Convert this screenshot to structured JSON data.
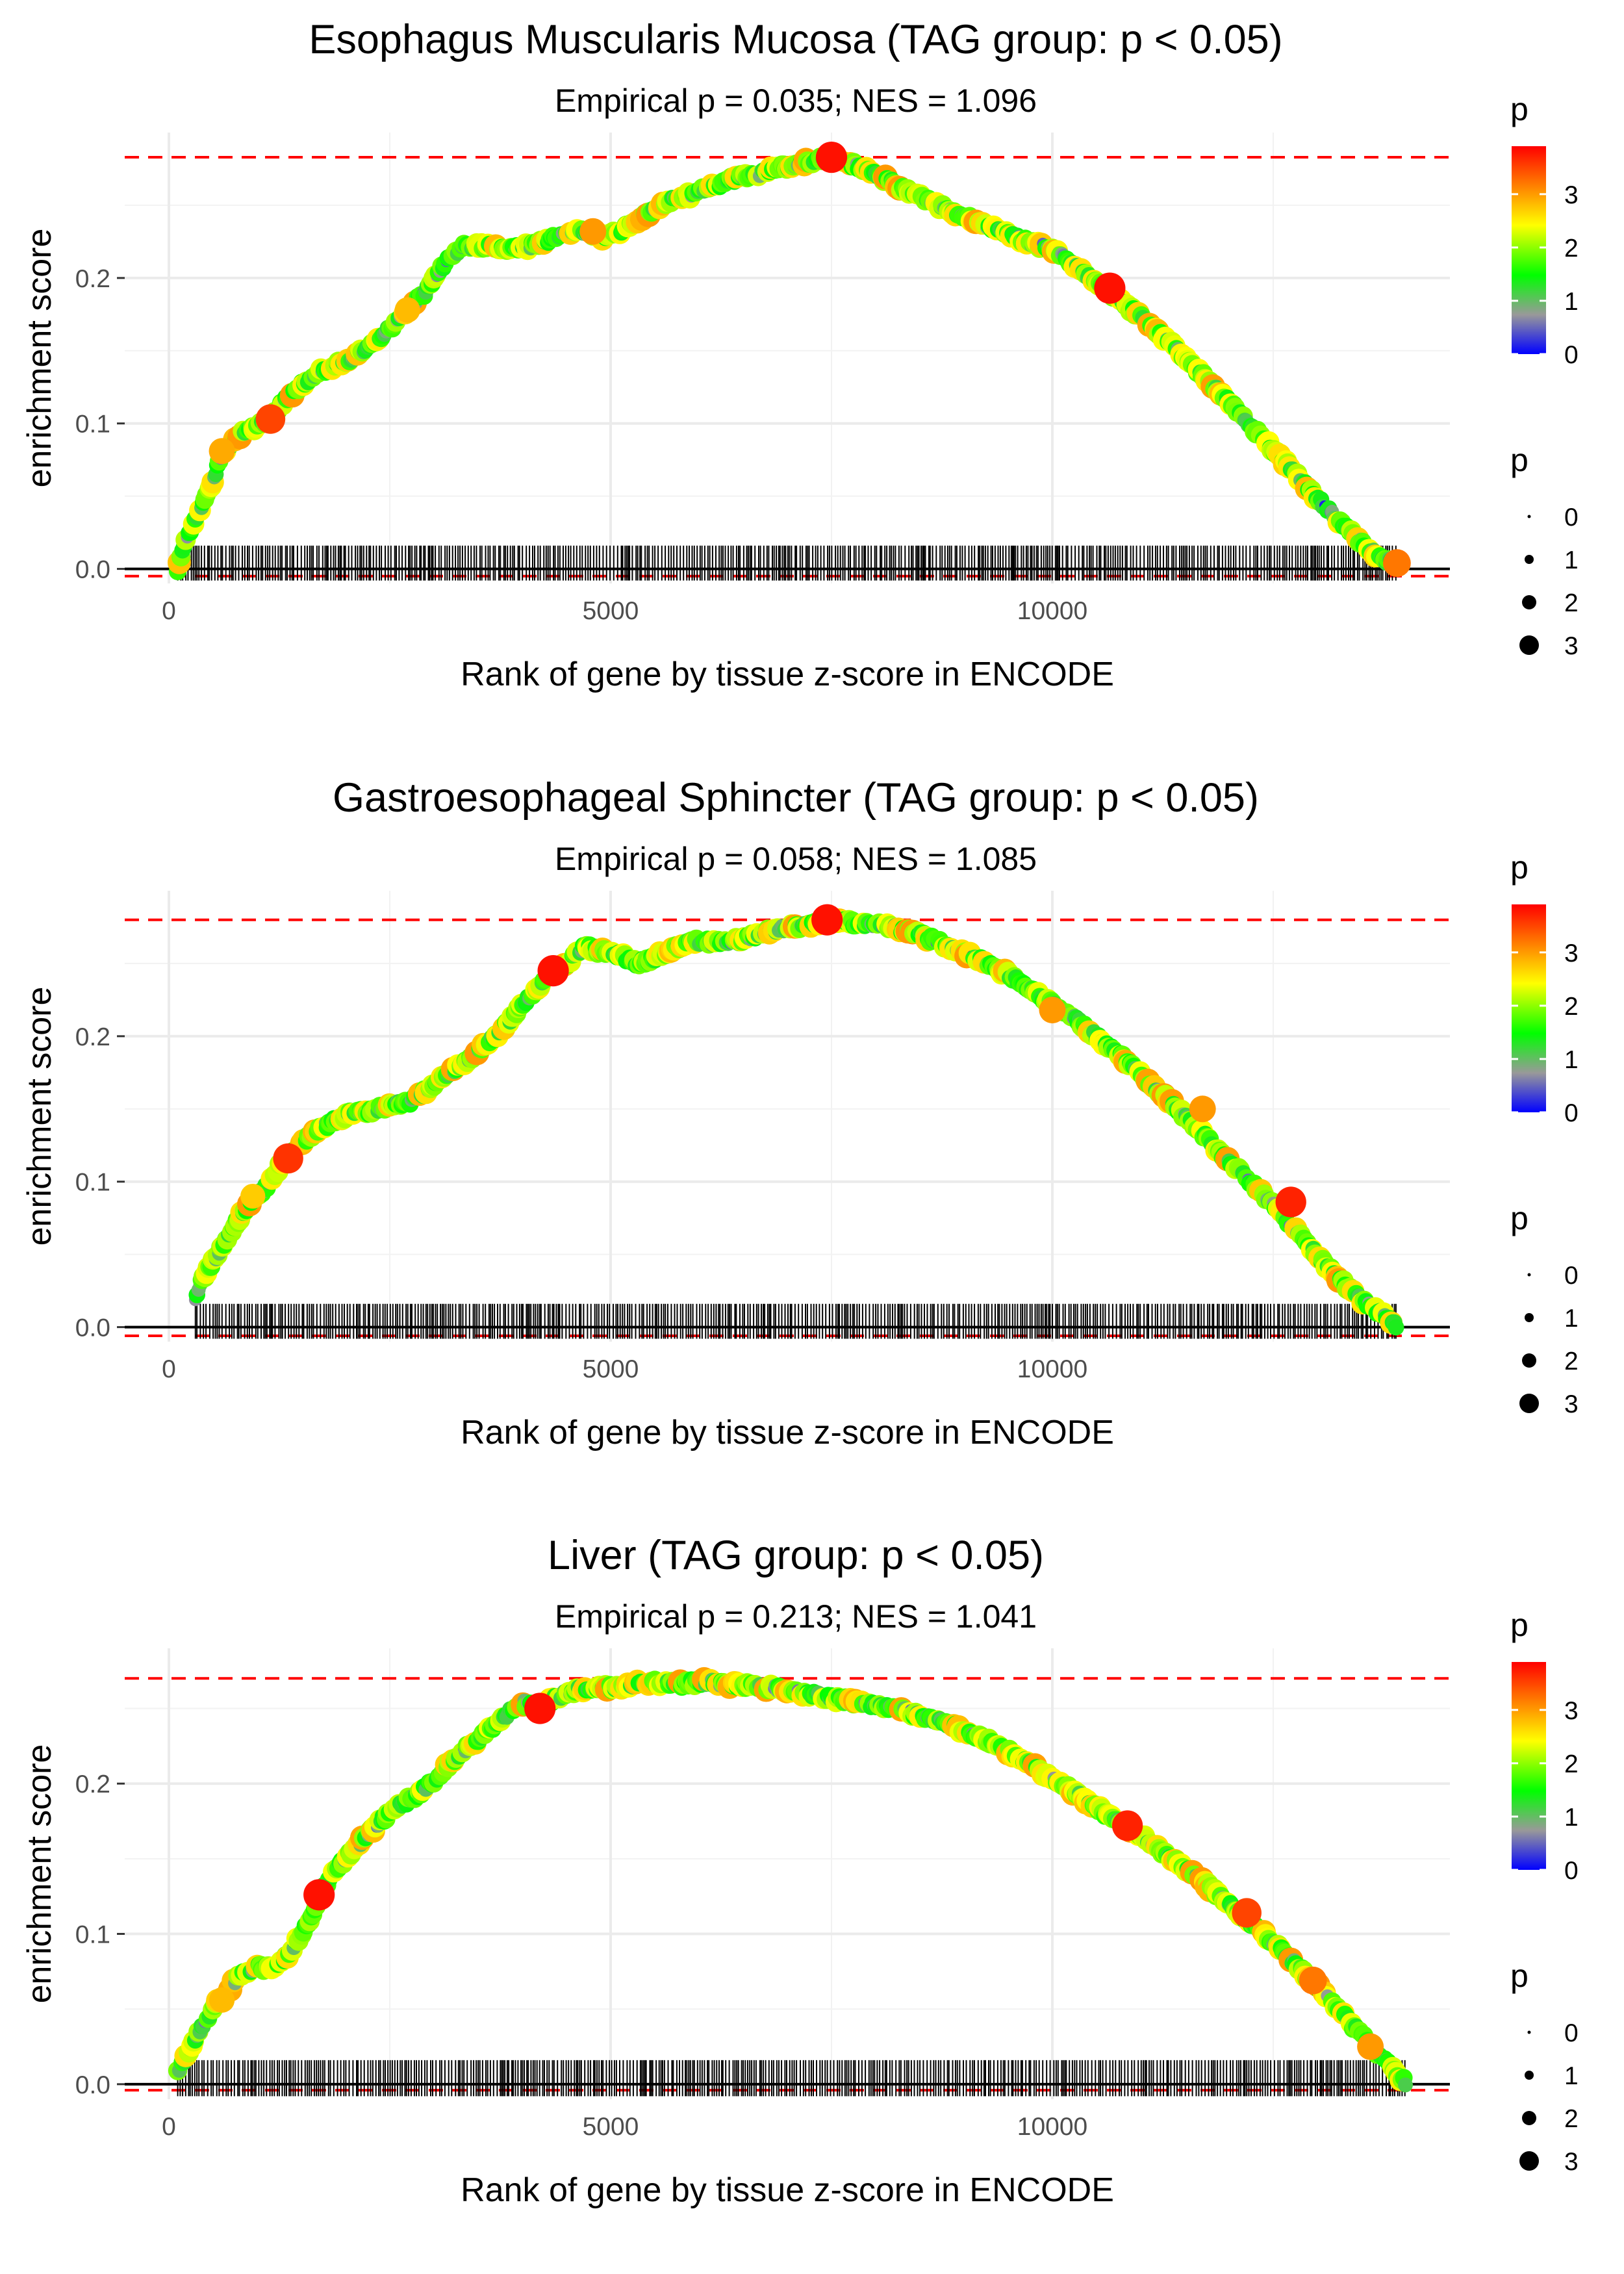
{
  "chart_data": [
    {
      "type": "line",
      "title": "Esophagus Muscularis Mucosa (TAG group: p < 0.05)",
      "subtitle": "Empirical p = 0.035; NES = 1.096",
      "xlabel": "Rank of gene by tissue z-score in ENCODE",
      "ylabel": "enrichment score",
      "xlim": [
        -500,
        14500
      ],
      "ylim": [
        -0.01,
        0.3
      ],
      "x_ticks": [
        0,
        5000,
        10000
      ],
      "x_tick_labels": [
        "0",
        "5000",
        "10000"
      ],
      "y_ticks": [
        0.0,
        0.1,
        0.2
      ],
      "y_tick_labels": [
        "0.0",
        "0.1",
        "0.2"
      ],
      "max_es": 0.283,
      "min_es": -0.005,
      "n_genes": 14000,
      "curve_x": [
        100,
        200,
        350,
        500,
        600,
        700,
        850,
        1000,
        1150,
        1300,
        1500,
        1700,
        1900,
        2100,
        2300,
        2500,
        2700,
        2900,
        3050,
        3200,
        3350,
        3500,
        3700,
        3900,
        4100,
        4300,
        4500,
        4700,
        4900,
        5100,
        5300,
        5500,
        5700,
        5900,
        6100,
        6300,
        6500,
        6700,
        6900,
        7100,
        7300,
        7500,
        7700,
        7900,
        8100,
        8300,
        8500,
        8700,
        8900,
        9100,
        9300,
        9500,
        9700,
        9900,
        10100,
        10300,
        10500,
        10700,
        10900,
        11100,
        11300,
        11500,
        11700,
        11900,
        12100,
        12300,
        12500,
        12700,
        12900,
        13100,
        13300,
        13500,
        13700,
        13900
      ],
      "curve_y": [
        0.0,
        0.02,
        0.04,
        0.06,
        0.08,
        0.085,
        0.095,
        0.098,
        0.103,
        0.115,
        0.127,
        0.135,
        0.14,
        0.146,
        0.155,
        0.165,
        0.178,
        0.19,
        0.205,
        0.215,
        0.222,
        0.222,
        0.221,
        0.22,
        0.222,
        0.226,
        0.231,
        0.232,
        0.228,
        0.232,
        0.24,
        0.248,
        0.254,
        0.257,
        0.262,
        0.266,
        0.27,
        0.272,
        0.276,
        0.278,
        0.281,
        0.283,
        0.279,
        0.274,
        0.268,
        0.262,
        0.256,
        0.25,
        0.245,
        0.24,
        0.235,
        0.23,
        0.225,
        0.222,
        0.216,
        0.206,
        0.197,
        0.188,
        0.178,
        0.168,
        0.157,
        0.145,
        0.133,
        0.121,
        0.108,
        0.095,
        0.082,
        0.069,
        0.055,
        0.042,
        0.03,
        0.018,
        0.008,
        0.003
      ],
      "highlight_points": [
        {
          "x": 7500,
          "y": 0.283,
          "p": 3.8
        },
        {
          "x": 10650,
          "y": 0.193,
          "p": 3.8
        },
        {
          "x": 1150,
          "y": 0.103,
          "p": 3.5
        },
        {
          "x": 13900,
          "y": 0.004,
          "p": 3.2
        },
        {
          "x": 4800,
          "y": 0.232,
          "p": 3.0
        },
        {
          "x": 600,
          "y": 0.081,
          "p": 2.9
        },
        {
          "x": 2700,
          "y": 0.178,
          "p": 2.8
        }
      ],
      "legend_color": {
        "title": "p",
        "ticks": [
          "0",
          "1",
          "2",
          "3"
        ],
        "colors": [
          "#0000ff",
          "#999999",
          "#00ff00",
          "#ffff00",
          "#ff0000"
        ],
        "range": [
          0,
          3.9
        ]
      },
      "legend_size": {
        "title": "p",
        "labels": [
          "0",
          "1",
          "2",
          "3"
        ]
      }
    },
    {
      "type": "line",
      "title": "Gastroesophageal Sphincter (TAG group: p < 0.05)",
      "subtitle": "Empirical p = 0.058; NES = 1.085",
      "xlabel": "Rank of gene by tissue z-score in ENCODE",
      "ylabel": "enrichment score",
      "xlim": [
        -500,
        14500
      ],
      "ylim": [
        -0.01,
        0.3
      ],
      "x_ticks": [
        0,
        5000,
        10000
      ],
      "x_tick_labels": [
        "0",
        "5000",
        "10000"
      ],
      "y_ticks": [
        0.0,
        0.1,
        0.2
      ],
      "y_tick_labels": [
        "0.0",
        "0.1",
        "0.2"
      ],
      "max_es": 0.28,
      "min_es": -0.006,
      "n_genes": 14000,
      "curve_x": [
        300,
        400,
        550,
        700,
        850,
        1000,
        1150,
        1300,
        1500,
        1700,
        1900,
        2100,
        2300,
        2500,
        2700,
        2900,
        3100,
        3300,
        3500,
        3700,
        3900,
        4100,
        4300,
        4500,
        4700,
        4900,
        5100,
        5300,
        5500,
        5700,
        5900,
        6100,
        6300,
        6500,
        6700,
        6900,
        7100,
        7300,
        7500,
        7700,
        7900,
        8100,
        8300,
        8500,
        8700,
        8900,
        9100,
        9300,
        9500,
        9700,
        9900,
        10100,
        10300,
        10500,
        10700,
        10900,
        11100,
        11300,
        11500,
        11700,
        11900,
        12100,
        12300,
        12500,
        12700,
        12900,
        13100,
        13300,
        13500,
        13700,
        13900
      ],
      "curve_y": [
        0.02,
        0.035,
        0.05,
        0.065,
        0.08,
        0.09,
        0.1,
        0.115,
        0.126,
        0.136,
        0.143,
        0.148,
        0.148,
        0.153,
        0.154,
        0.162,
        0.172,
        0.18,
        0.19,
        0.2,
        0.214,
        0.228,
        0.243,
        0.25,
        0.262,
        0.258,
        0.256,
        0.25,
        0.254,
        0.26,
        0.265,
        0.265,
        0.264,
        0.267,
        0.27,
        0.274,
        0.275,
        0.277,
        0.28,
        0.278,
        0.277,
        0.276,
        0.273,
        0.27,
        0.265,
        0.26,
        0.255,
        0.249,
        0.242,
        0.234,
        0.226,
        0.218,
        0.21,
        0.2,
        0.19,
        0.18,
        0.168,
        0.157,
        0.145,
        0.133,
        0.12,
        0.108,
        0.096,
        0.085,
        0.07,
        0.056,
        0.042,
        0.03,
        0.018,
        0.01,
        0.001
      ],
      "highlight_points": [
        {
          "x": 7450,
          "y": 0.28,
          "p": 3.8
        },
        {
          "x": 4350,
          "y": 0.245,
          "p": 3.8
        },
        {
          "x": 1350,
          "y": 0.116,
          "p": 3.6
        },
        {
          "x": 12700,
          "y": 0.086,
          "p": 3.7
        },
        {
          "x": 10000,
          "y": 0.218,
          "p": 3.0
        },
        {
          "x": 11700,
          "y": 0.15,
          "p": 3.0
        },
        {
          "x": 950,
          "y": 0.09,
          "p": 2.7
        }
      ],
      "legend_color": {
        "title": "p",
        "ticks": [
          "0",
          "1",
          "2",
          "3"
        ],
        "colors": [
          "#0000ff",
          "#999999",
          "#00ff00",
          "#ffff00",
          "#ff0000"
        ],
        "range": [
          0,
          3.9
        ]
      },
      "legend_size": {
        "title": "p",
        "labels": [
          "0",
          "1",
          "2",
          "3"
        ]
      }
    },
    {
      "type": "line",
      "title": "Liver (TAG group: p < 0.05)",
      "subtitle": "Empirical p = 0.213; NES = 1.041",
      "xlabel": "Rank of gene by tissue z-score in ENCODE",
      "ylabel": "enrichment score",
      "xlim": [
        -500,
        14500
      ],
      "ylim": [
        -0.01,
        0.29
      ],
      "x_ticks": [
        0,
        5000,
        10000
      ],
      "x_tick_labels": [
        "0",
        "5000",
        "10000"
      ],
      "y_ticks": [
        0.0,
        0.1,
        0.2
      ],
      "y_tick_labels": [
        "0.0",
        "0.1",
        "0.2"
      ],
      "max_es": 0.27,
      "min_es": -0.004,
      "n_genes": 14000,
      "curve_x": [
        100,
        250,
        400,
        550,
        700,
        850,
        1000,
        1200,
        1400,
        1600,
        1700,
        1850,
        2000,
        2200,
        2400,
        2600,
        2800,
        3000,
        3200,
        3400,
        3600,
        3800,
        4000,
        4200,
        4400,
        4600,
        4800,
        5000,
        5200,
        5400,
        5600,
        5800,
        6000,
        6200,
        6400,
        6600,
        6800,
        7000,
        7200,
        7400,
        7600,
        7800,
        8000,
        8200,
        8400,
        8600,
        8800,
        9000,
        9200,
        9400,
        9600,
        9800,
        10000,
        10200,
        10400,
        10600,
        10800,
        11000,
        11200,
        11400,
        11600,
        11800,
        12000,
        12200,
        12400,
        12600,
        12800,
        13000,
        13200,
        13400,
        13600,
        13800,
        14000
      ],
      "curve_y": [
        0.008,
        0.025,
        0.04,
        0.055,
        0.065,
        0.075,
        0.078,
        0.077,
        0.09,
        0.11,
        0.125,
        0.14,
        0.15,
        0.163,
        0.175,
        0.185,
        0.192,
        0.202,
        0.215,
        0.225,
        0.235,
        0.245,
        0.254,
        0.25,
        0.258,
        0.262,
        0.264,
        0.264,
        0.266,
        0.267,
        0.267,
        0.266,
        0.268,
        0.267,
        0.266,
        0.265,
        0.264,
        0.262,
        0.26,
        0.258,
        0.256,
        0.254,
        0.252,
        0.25,
        0.247,
        0.244,
        0.24,
        0.235,
        0.23,
        0.225,
        0.218,
        0.211,
        0.203,
        0.196,
        0.188,
        0.18,
        0.172,
        0.165,
        0.157,
        0.148,
        0.139,
        0.13,
        0.12,
        0.11,
        0.1,
        0.089,
        0.077,
        0.065,
        0.052,
        0.039,
        0.026,
        0.013,
        0.001
      ],
      "highlight_points": [
        {
          "x": 1700,
          "y": 0.126,
          "p": 3.8
        },
        {
          "x": 4200,
          "y": 0.25,
          "p": 3.8
        },
        {
          "x": 10850,
          "y": 0.172,
          "p": 3.7
        },
        {
          "x": 12200,
          "y": 0.114,
          "p": 3.5
        },
        {
          "x": 12950,
          "y": 0.069,
          "p": 3.2
        },
        {
          "x": 13600,
          "y": 0.025,
          "p": 3.0
        },
        {
          "x": 600,
          "y": 0.056,
          "p": 2.8
        }
      ],
      "legend_color": {
        "title": "p",
        "ticks": [
          "0",
          "1",
          "2",
          "3"
        ],
        "colors": [
          "#0000ff",
          "#999999",
          "#00ff00",
          "#ffff00",
          "#ff0000"
        ],
        "range": [
          0,
          3.9
        ]
      },
      "legend_size": {
        "title": "p",
        "labels": [
          "0",
          "1",
          "2",
          "3"
        ]
      }
    }
  ]
}
